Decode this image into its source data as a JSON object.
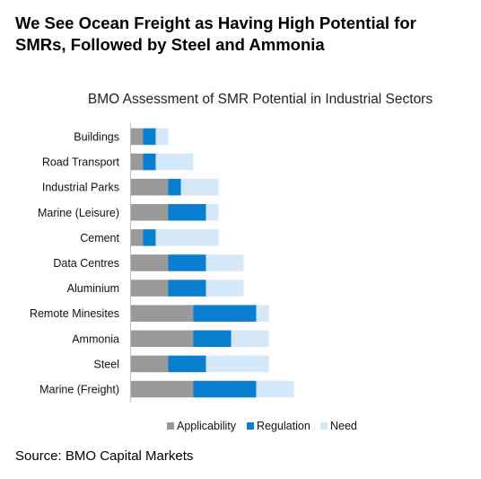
{
  "headline": "We See Ocean Freight as Having High Potential for SMRs, Followed by Steel and Ammonia",
  "source": "Source: BMO Capital Markets",
  "chart_data": {
    "type": "bar",
    "orientation": "horizontal",
    "stacked": true,
    "title": "BMO Assessment of SMR Potential in Industrial Sectors",
    "categories": [
      "Buildings",
      "Road Transport",
      "Industrial Parks",
      "Marine (Leisure)",
      "Cement",
      "Data Centres",
      "Aluminium",
      "Remote Minesites",
      "Ammonia",
      "Steel",
      "Marine (Freight)"
    ],
    "series": [
      {
        "name": "Applicability",
        "color": "#999999",
        "values": [
          1,
          1,
          3,
          3,
          1,
          3,
          3,
          5,
          5,
          3,
          5
        ]
      },
      {
        "name": "Regulation",
        "color": "#0a7ecf",
        "values": [
          1,
          1,
          1,
          3,
          1,
          3,
          3,
          5,
          3,
          3,
          5
        ]
      },
      {
        "name": "Need",
        "color": "#d5e8f7",
        "values": [
          1,
          3,
          3,
          1,
          5,
          3,
          3,
          1,
          3,
          5,
          3
        ]
      }
    ],
    "legend_position": "bottom",
    "grid": false
  }
}
